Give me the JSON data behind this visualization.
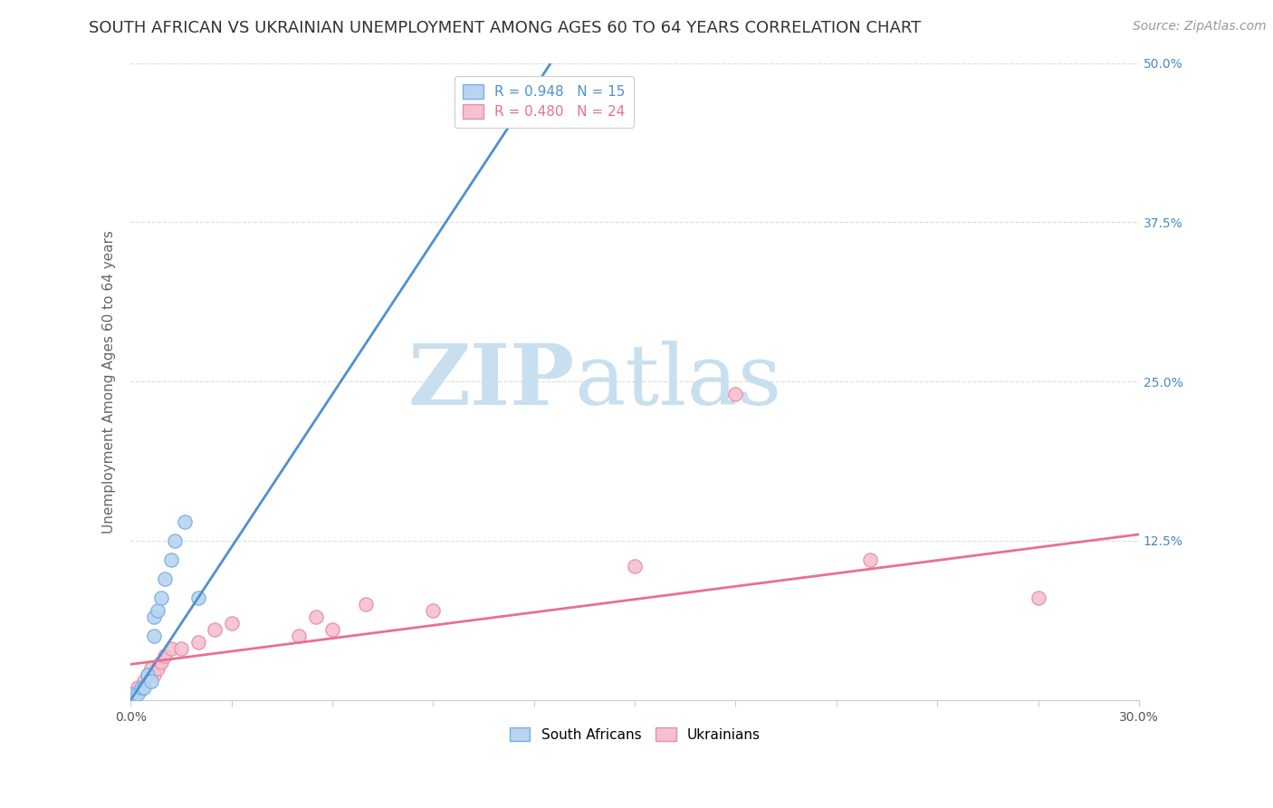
{
  "title": "SOUTH AFRICAN VS UKRAINIAN UNEMPLOYMENT AMONG AGES 60 TO 64 YEARS CORRELATION CHART",
  "source": "Source: ZipAtlas.com",
  "ylabel": "Unemployment Among Ages 60 to 64 years",
  "xlim": [
    0.0,
    0.3
  ],
  "ylim": [
    0.0,
    0.5
  ],
  "xticks": [
    0.0,
    0.03,
    0.06,
    0.09,
    0.12,
    0.15,
    0.18,
    0.21,
    0.24,
    0.27,
    0.3
  ],
  "ytick_labels_right": [
    "12.5%",
    "25.0%",
    "37.5%",
    "50.0%"
  ],
  "yticks_right": [
    0.125,
    0.25,
    0.375,
    0.5
  ],
  "background_color": "#ffffff",
  "grid_color": "#dddddd",
  "watermark_zip": "ZIP",
  "watermark_atlas": "atlas",
  "watermark_color_zip": "#c8dff0",
  "watermark_color_atlas": "#c8dff0",
  "sa_color": "#b8d4f0",
  "sa_edge_color": "#7ab0e0",
  "ukr_color": "#f5c0d0",
  "ukr_edge_color": "#e890a8",
  "sa_line_color": "#5090d0",
  "ukr_line_color": "#e87090",
  "sa_R": 0.948,
  "sa_N": 15,
  "ukr_R": 0.48,
  "ukr_N": 24,
  "legend_sa_label": "R = 0.948   N = 15",
  "legend_ukr_label": "R = 0.480   N = 24",
  "sa_scatter_x": [
    0.001,
    0.002,
    0.003,
    0.004,
    0.005,
    0.006,
    0.007,
    0.007,
    0.008,
    0.009,
    0.01,
    0.012,
    0.013,
    0.016,
    0.02
  ],
  "sa_scatter_y": [
    0.005,
    0.005,
    0.01,
    0.01,
    0.02,
    0.015,
    0.05,
    0.065,
    0.07,
    0.08,
    0.095,
    0.11,
    0.125,
    0.14,
    0.08
  ],
  "ukr_scatter_x": [
    0.001,
    0.002,
    0.003,
    0.004,
    0.005,
    0.006,
    0.007,
    0.008,
    0.009,
    0.01,
    0.012,
    0.015,
    0.02,
    0.025,
    0.03,
    0.05,
    0.055,
    0.06,
    0.07,
    0.09,
    0.15,
    0.18,
    0.22,
    0.27
  ],
  "ukr_scatter_y": [
    0.005,
    0.01,
    0.008,
    0.015,
    0.02,
    0.025,
    0.02,
    0.025,
    0.03,
    0.035,
    0.04,
    0.04,
    0.045,
    0.055,
    0.06,
    0.05,
    0.065,
    0.055,
    0.075,
    0.07,
    0.105,
    0.24,
    0.11,
    0.08
  ],
  "sa_line_x0": 0.0,
  "sa_line_y0": 0.0,
  "sa_line_x1": 0.125,
  "sa_line_y1": 0.5,
  "ukr_line_x0": 0.0,
  "ukr_line_y0": 0.028,
  "ukr_line_x1": 0.3,
  "ukr_line_y1": 0.13,
  "title_fontsize": 13,
  "axis_label_fontsize": 11,
  "tick_fontsize": 10,
  "legend_fontsize": 11,
  "source_fontsize": 10
}
